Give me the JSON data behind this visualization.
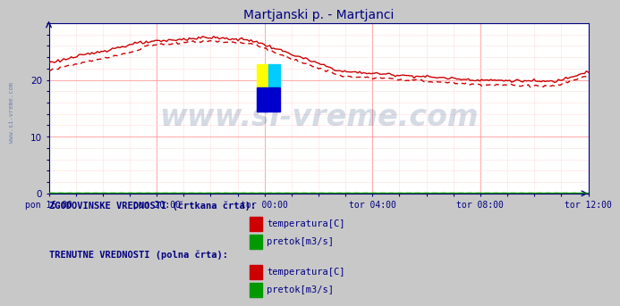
{
  "title": "Martjanski p. - Martjanci",
  "title_color": "#000080",
  "title_fontsize": 10,
  "bg_color": "#c8c8c8",
  "plot_bg_color": "#ffffff",
  "grid_color_major": "#ff9999",
  "grid_color_minor": "#ffdddd",
  "x_labels": [
    "pon 16:00",
    "pon 20:00",
    "tor 00:00",
    "tor 04:00",
    "tor 08:00",
    "tor 12:00"
  ],
  "x_ticks": [
    0,
    48,
    96,
    144,
    192,
    240
  ],
  "x_total": 240,
  "ylim": [
    0,
    30
  ],
  "yticks": [
    0,
    10,
    20
  ],
  "axis_color": "#000080",
  "watermark": "www.si-vreme.com",
  "watermark_color": "#1a3a6e",
  "watermark_alpha": 0.18,
  "watermark_fontsize": 24,
  "side_watermark": "www.si-vreme.com",
  "side_watermark_color": "#4466aa",
  "side_watermark_fontsize": 5,
  "legend_section1": "ZGODOVINSKE VREDNOSTI (črtkana črta):",
  "legend_section2": "TRENUTNE VREDNOSTI (polna črta):",
  "legend_color": "#000080",
  "legend_fontsize": 7.5,
  "temp_color": "#cc0000",
  "pretok_color": "#009900",
  "linewidth": 1.0
}
